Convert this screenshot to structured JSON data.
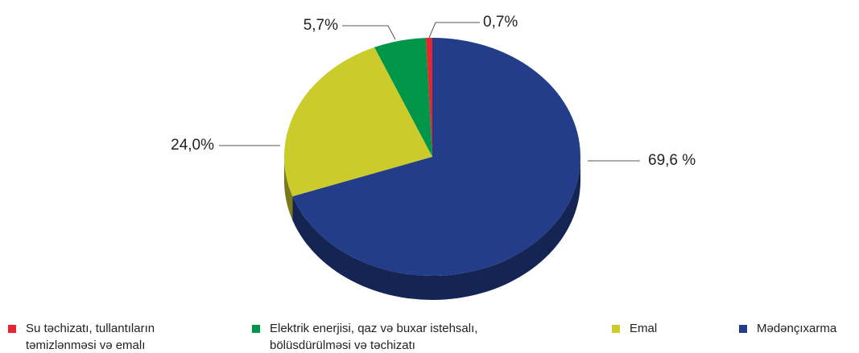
{
  "chart_data": {
    "type": "pie",
    "categories": [
      "Su təchizatı, tullantıların təmizlənməsi və emalı",
      "Elektrik enerjisi, qaz və buxar istehsalı, bölüsdürülməsi və təchizatı",
      "Emal",
      "Mədənçıxarma"
    ],
    "values": [
      0.7,
      5.7,
      24.0,
      69.6
    ],
    "value_labels": [
      "0,7%",
      "5,7%",
      "24,0%",
      "69,6 %"
    ],
    "colors": [
      "#e3262f",
      "#00964a",
      "#cbcb2c",
      "#233d8a"
    ],
    "legend": "bottom"
  }
}
